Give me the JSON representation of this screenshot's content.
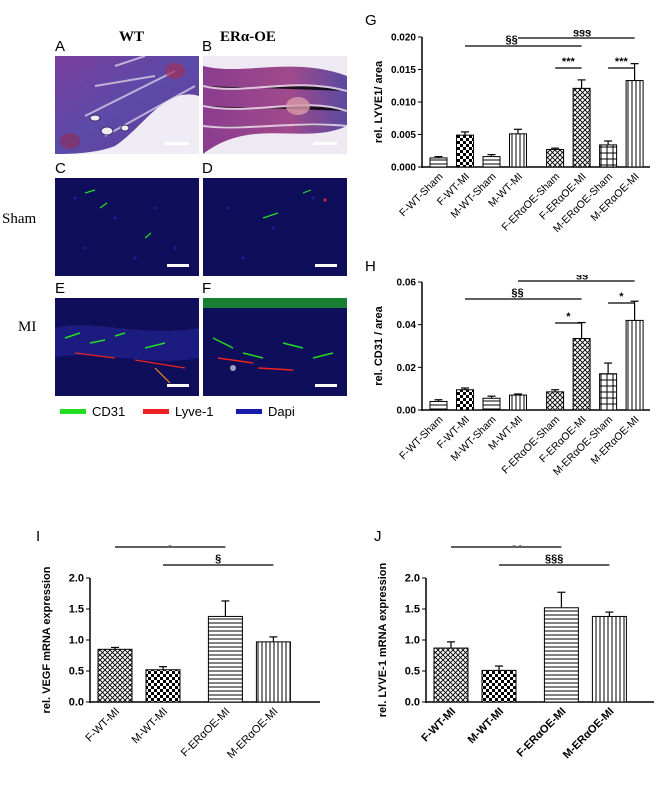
{
  "colors": {
    "cd31": "#22dd22",
    "lyve1": "#ee2222",
    "dapi": "#1a1aa8",
    "histo_purple": "#8a4aa8",
    "fluor_bg": "#0e0e5a"
  },
  "micrographs": {
    "col_titles": [
      "WT",
      "ERα-OE"
    ],
    "row_labels": [
      "Sham",
      "MI"
    ],
    "panels": [
      {
        "letter": "A",
        "type": "histology"
      },
      {
        "letter": "B",
        "type": "histology"
      },
      {
        "letter": "C",
        "type": "fluorescence"
      },
      {
        "letter": "D",
        "type": "fluorescence"
      },
      {
        "letter": "E",
        "type": "fluorescence"
      },
      {
        "letter": "F",
        "type": "fluorescence"
      }
    ],
    "legend": [
      {
        "label": "CD31",
        "color": "#22dd22"
      },
      {
        "label": "Lyve-1",
        "color": "#ee2222"
      },
      {
        "label": "Dapi",
        "color": "#1a1aa8"
      }
    ]
  },
  "chart_data": [
    {
      "panel": "G",
      "type": "bar",
      "ylabel": "rel. LYVE1/ area",
      "ylim": [
        0,
        0.02
      ],
      "yticks": [
        "0.000",
        "0.005",
        "0.010",
        "0.015",
        "0.020"
      ],
      "categories": [
        "F-WT-Sham",
        "F-WT-MI",
        "M-WT-Sham",
        "M-WT-MI",
        "F-ERαOE-Sham",
        "F-ERαOE-MI",
        "M-ERαOE-Sham",
        "M-ERαOE-MI"
      ],
      "values": [
        0.0014,
        0.0049,
        0.0016,
        0.0051,
        0.0027,
        0.0121,
        0.0034,
        0.0133
      ],
      "errors": [
        0.0002,
        0.0005,
        0.0003,
        0.0007,
        0.0002,
        0.0013,
        0.0006,
        0.0026
      ],
      "annotations": [
        "§§",
        "§§§",
        "***",
        "***"
      ]
    },
    {
      "panel": "H",
      "type": "bar",
      "ylabel": "rel. CD31 / area",
      "ylim": [
        0,
        0.06
      ],
      "yticks": [
        "0.00",
        "0.02",
        "0.04",
        "0.06"
      ],
      "categories": [
        "F-WT-Sham",
        "F-WT-MI",
        "M-WT-Sham",
        "M-WT-MI",
        "F-ERαOE-Sham",
        "F-ERαOE-MI",
        "M-ERαOE-Sham",
        "M-ERαOE-MI"
      ],
      "values": [
        0.004,
        0.0095,
        0.0055,
        0.007,
        0.0085,
        0.0335,
        0.017,
        0.042
      ],
      "errors": [
        0.0008,
        0.0008,
        0.001,
        0.0005,
        0.001,
        0.0075,
        0.005,
        0.009
      ],
      "annotations": [
        "§§",
        "§§",
        "*",
        "*"
      ]
    },
    {
      "panel": "I",
      "type": "bar",
      "ylabel": "rel. VEGF mRNA expression",
      "ylim": [
        0,
        2.0
      ],
      "yticks": [
        "0.0",
        "0.5",
        "1.0",
        "1.5",
        "2.0"
      ],
      "categories": [
        "F-WT-MI",
        "M-WT-MI",
        "F-ERαOE-MI",
        "M-ERαOE-MI"
      ],
      "values": [
        0.85,
        0.52,
        1.38,
        0.97
      ],
      "errors": [
        0.03,
        0.05,
        0.25,
        0.08
      ],
      "annotations": [
        "§",
        "§"
      ]
    },
    {
      "panel": "J",
      "type": "bar",
      "ylabel": "rel. LYVE-1 mRNA expression",
      "ylim": [
        0,
        2.0
      ],
      "yticks": [
        "0.0",
        "0.5",
        "1.0",
        "1.5",
        "2.0"
      ],
      "categories": [
        "F-WT-MI",
        "M-WT-MI",
        "F-ERαOE-MI",
        "M-ERαOE-MI"
      ],
      "values": [
        0.87,
        0.51,
        1.52,
        1.38
      ],
      "errors": [
        0.1,
        0.07,
        0.25,
        0.07
      ],
      "annotations": [
        "§§",
        "§§§"
      ]
    }
  ]
}
